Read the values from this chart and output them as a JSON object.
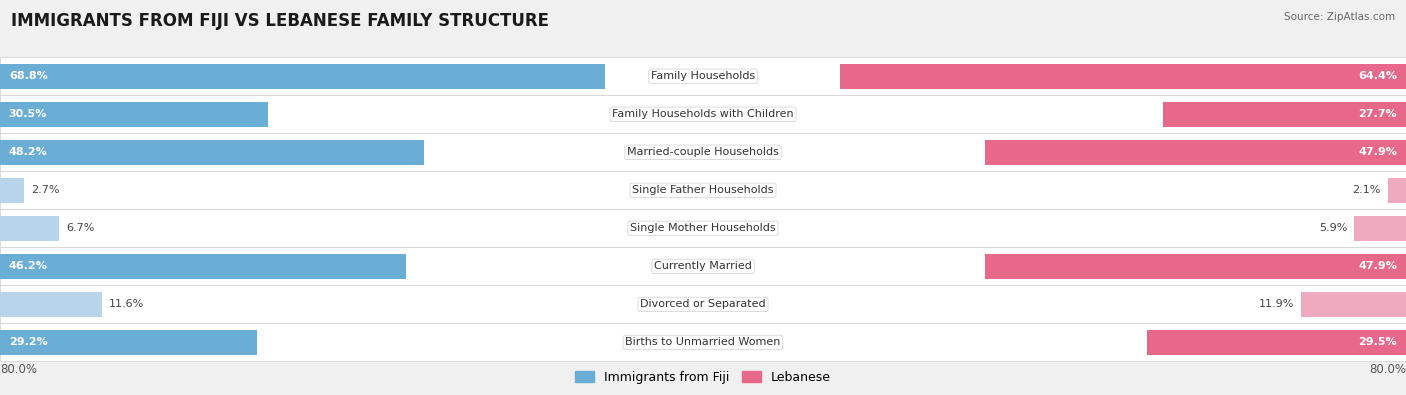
{
  "title": "IMMIGRANTS FROM FIJI VS LEBANESE FAMILY STRUCTURE",
  "source": "Source: ZipAtlas.com",
  "categories": [
    "Family Households",
    "Family Households with Children",
    "Married-couple Households",
    "Single Father Households",
    "Single Mother Households",
    "Currently Married",
    "Divorced or Separated",
    "Births to Unmarried Women"
  ],
  "fiji_values": [
    68.8,
    30.5,
    48.2,
    2.7,
    6.7,
    46.2,
    11.6,
    29.2
  ],
  "lebanese_values": [
    64.4,
    27.7,
    47.9,
    2.1,
    5.9,
    47.9,
    11.9,
    29.5
  ],
  "fiji_color_dark": "#6aaed6",
  "fiji_color_light": "#b8d4ea",
  "lebanese_color_dark": "#e8688a",
  "lebanese_color_light": "#f0aabf",
  "axis_max": 80.0,
  "axis_label_left": "80.0%",
  "axis_label_right": "80.0%",
  "legend_fiji": "Immigrants from Fiji",
  "legend_lebanese": "Lebanese",
  "background_color": "#f0f0f0",
  "row_bg_light": "#f8f8f8",
  "row_border": "#d0d0d0",
  "title_fontsize": 12,
  "label_fontsize": 8,
  "value_fontsize": 8,
  "threshold_dark": 15.0
}
